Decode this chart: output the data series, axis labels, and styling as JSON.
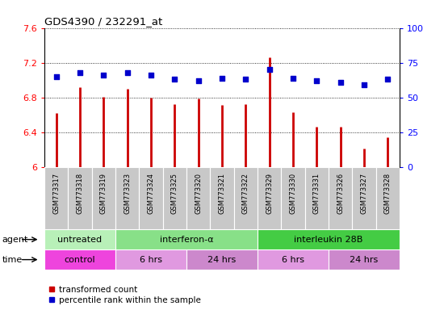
{
  "title": "GDS4390 / 232291_at",
  "samples": [
    "GSM773317",
    "GSM773318",
    "GSM773319",
    "GSM773323",
    "GSM773324",
    "GSM773325",
    "GSM773320",
    "GSM773321",
    "GSM773322",
    "GSM773329",
    "GSM773330",
    "GSM773331",
    "GSM773326",
    "GSM773327",
    "GSM773328"
  ],
  "transformed_count": [
    6.62,
    6.92,
    6.81,
    6.9,
    6.8,
    6.73,
    6.79,
    6.72,
    6.73,
    7.26,
    6.63,
    6.47,
    6.47,
    6.22,
    6.35
  ],
  "percentile_rank": [
    65,
    68,
    66,
    68,
    66,
    63,
    62,
    64,
    63,
    70,
    64,
    62,
    61,
    59,
    63
  ],
  "ylim_left": [
    6.0,
    7.6
  ],
  "ylim_right": [
    0,
    100
  ],
  "yticks_left": [
    6.0,
    6.4,
    6.8,
    7.2,
    7.6
  ],
  "yticks_right": [
    0,
    25,
    50,
    75,
    100
  ],
  "ytick_labels_right": [
    "0",
    "25",
    "50",
    "75",
    "100"
  ],
  "bar_color": "#cc0000",
  "dot_color": "#0000cc",
  "bar_baseline": 6.0,
  "agent_groups": [
    {
      "label": "untreated",
      "start": 0,
      "end": 3,
      "color": "#b8f0b8"
    },
    {
      "label": "interferon-α",
      "start": 3,
      "end": 9,
      "color": "#88e088"
    },
    {
      "label": "interleukin 28B",
      "start": 9,
      "end": 15,
      "color": "#44cc44"
    }
  ],
  "time_groups": [
    {
      "label": "control",
      "start": 0,
      "end": 3,
      "color": "#ee44dd"
    },
    {
      "label": "6 hrs",
      "start": 3,
      "end": 6,
      "color": "#e099e0"
    },
    {
      "label": "24 hrs",
      "start": 6,
      "end": 9,
      "color": "#cc88cc"
    },
    {
      "label": "6 hrs",
      "start": 9,
      "end": 12,
      "color": "#e099e0"
    },
    {
      "label": "24 hrs",
      "start": 12,
      "end": 15,
      "color": "#cc88cc"
    }
  ],
  "sample_bg_color": "#c8c8c8",
  "main_bg_color": "#ffffff",
  "legend_items": [
    "transformed count",
    "percentile rank within the sample"
  ]
}
